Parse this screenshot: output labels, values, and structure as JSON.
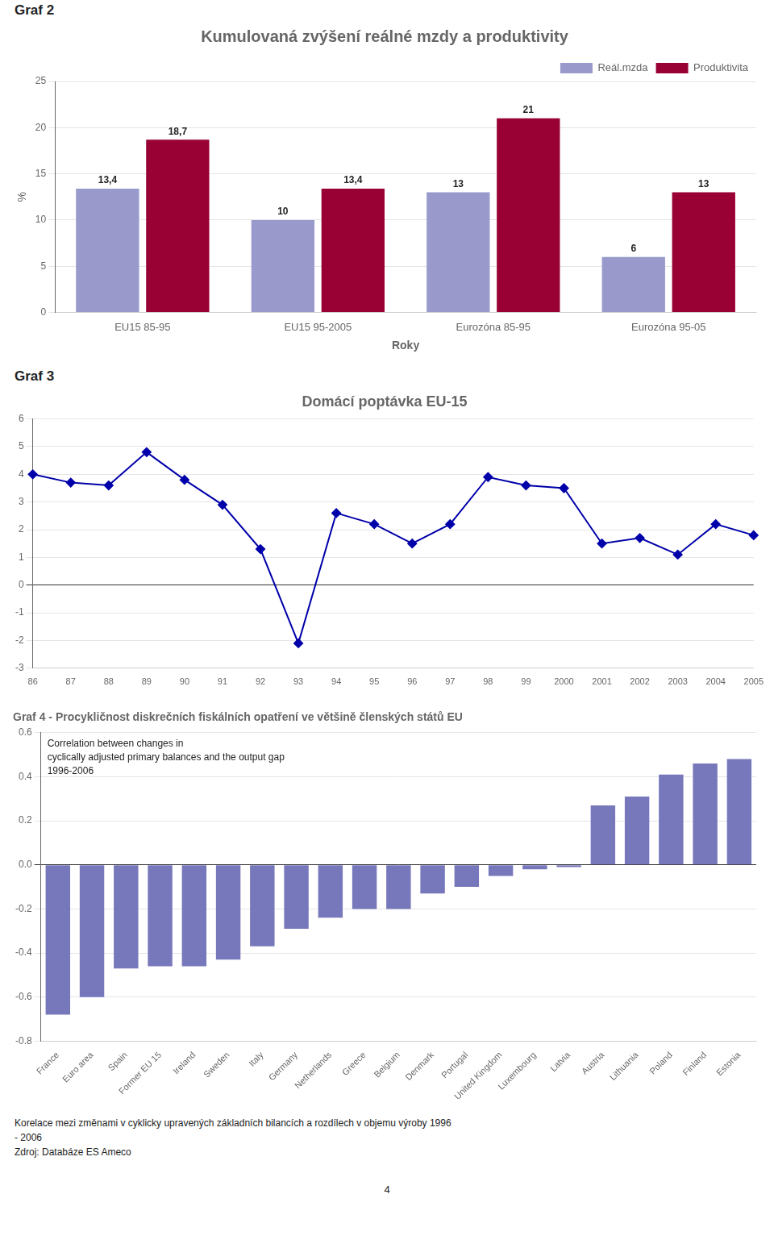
{
  "chart_data": [
    {
      "type": "bar",
      "subtitle": "Graf 2",
      "title": "Kumulovaná zvýšení reálné mzdy a produktivity",
      "x_label": "Roky",
      "y_label": "%",
      "categories": [
        "EU15 85-95",
        "EU15 95-2005",
        "Eurozóna 85-95",
        "Eurozóna 95-05"
      ],
      "series": [
        {
          "name": "Reál.mzda",
          "color": "#9999CC",
          "values": [
            13.4,
            10.0,
            13.0,
            6.0
          ],
          "value_labels": [
            "13,4",
            "10",
            "13",
            "6"
          ]
        },
        {
          "name": "Produktivita",
          "color": "#990033",
          "values": [
            18.7,
            13.4,
            21.0,
            13.0
          ],
          "value_labels": [
            "18,7",
            "13,4",
            "21",
            "13"
          ]
        }
      ],
      "ylim": [
        0,
        25
      ],
      "yticks": [
        0,
        5,
        10,
        15,
        20,
        25
      ],
      "grid": true,
      "legend": "upper right",
      "data_labels": true
    },
    {
      "type": "line",
      "subtitle": "Graf 3",
      "title": "Domácí poptávka EU-15",
      "categories": [
        "86",
        "87",
        "88",
        "89",
        "90",
        "91",
        "92",
        "93",
        "94",
        "95",
        "96",
        "97",
        "98",
        "99",
        "2000",
        "2001",
        "2002",
        "2003",
        "2004",
        "2005"
      ],
      "values": [
        4.0,
        3.7,
        3.6,
        4.8,
        3.8,
        2.9,
        1.3,
        -2.1,
        2.6,
        2.2,
        1.5,
        2.2,
        3.9,
        3.6,
        3.5,
        1.5,
        1.7,
        1.1,
        2.2,
        1.8
      ],
      "color": "#0000AA",
      "marker": "diamond",
      "ylim": [
        -3,
        6
      ],
      "yticks": [
        -3,
        -2,
        -1,
        0,
        1,
        2,
        3,
        4,
        5,
        6
      ],
      "grid": true
    },
    {
      "type": "bar",
      "title": "Graf 4 - Procykličnost diskrečních fiskálních opatření ve většině členských států EU",
      "annotations": [
        "Correlation between changes in",
        "cyclically adjusted primary balances and the output gap",
        "1996-2006"
      ],
      "categories": [
        "France",
        "Euro area",
        "Spain",
        "Former EU 15",
        "Ireland",
        "Sweden",
        "Italy",
        "Germany",
        "Netherlands",
        "Greece",
        "Belgium",
        "Denmark",
        "Portugal",
        "United Kingdom",
        "Luxembourg",
        "Latvia",
        "Austria",
        "Lithuania",
        "Poland",
        "Finland",
        "Estonia"
      ],
      "values": [
        -0.68,
        -0.6,
        -0.47,
        -0.46,
        -0.46,
        -0.43,
        -0.37,
        -0.29,
        -0.24,
        -0.2,
        -0.2,
        -0.13,
        -0.1,
        -0.05,
        -0.02,
        -0.01,
        0.27,
        0.31,
        0.41,
        0.46,
        0.48
      ],
      "color": "#7777BB",
      "ylim": [
        -0.8,
        0.6
      ],
      "yticks": [
        -0.8,
        -0.6,
        -0.4,
        -0.2,
        {
          "value": 0,
          "label": "0.0"
        },
        0.2,
        0.4,
        0.6
      ],
      "grid": true
    }
  ],
  "annotations": [
    "Korelace mezi změnami v cyklicky upravených základních bilancích a rozdílech v objemu výroby 1996",
    "- 2006",
    "Zdroj: Databáze ES Ameco",
    "4"
  ]
}
